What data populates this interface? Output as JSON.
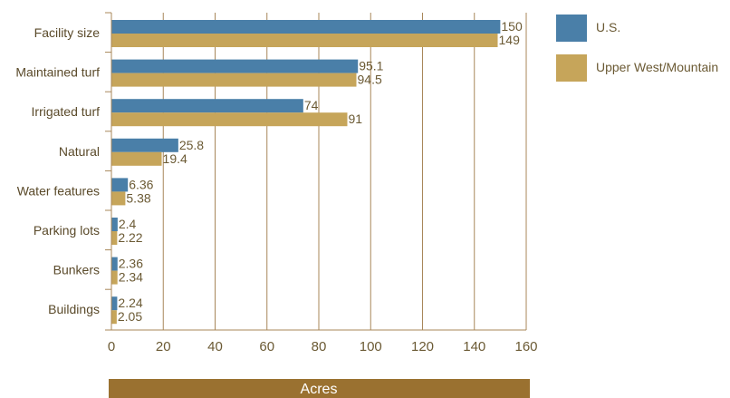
{
  "chart_data": {
    "type": "bar",
    "orientation": "horizontal",
    "categories": [
      "Facility size",
      "Maintained turf",
      "Irrigated turf",
      "Natural",
      "Water features",
      "Parking lots",
      "Bunkers",
      "Buildings"
    ],
    "series": [
      {
        "name": "U.S.",
        "color": "#4a7fa8",
        "values": [
          150,
          95.1,
          74,
          25.8,
          6.36,
          2.4,
          2.36,
          2.24
        ],
        "labels": [
          "150",
          "95.1",
          "74",
          "25.8",
          "6.36",
          "2.4",
          "2.36",
          "2.24"
        ]
      },
      {
        "name": "Upper West/Mountain",
        "color": "#c6a55a",
        "values": [
          149,
          94.5,
          91,
          19.4,
          5.38,
          2.22,
          2.34,
          2.05
        ],
        "labels": [
          "149",
          "94.5",
          "91",
          "19.4",
          "5.38",
          "2.22",
          "2.34",
          "2.05"
        ]
      }
    ],
    "xlabel": "Acres",
    "xlim": [
      0,
      160
    ],
    "xticks": [
      "0",
      "20",
      "40",
      "60",
      "80",
      "100",
      "120",
      "140",
      "160"
    ],
    "grid": "vertical",
    "legend_position": "top-right",
    "colors": {
      "gridline": "#a8875a",
      "axis": "#a8875a",
      "xlabel_band": "#9a7130"
    }
  }
}
